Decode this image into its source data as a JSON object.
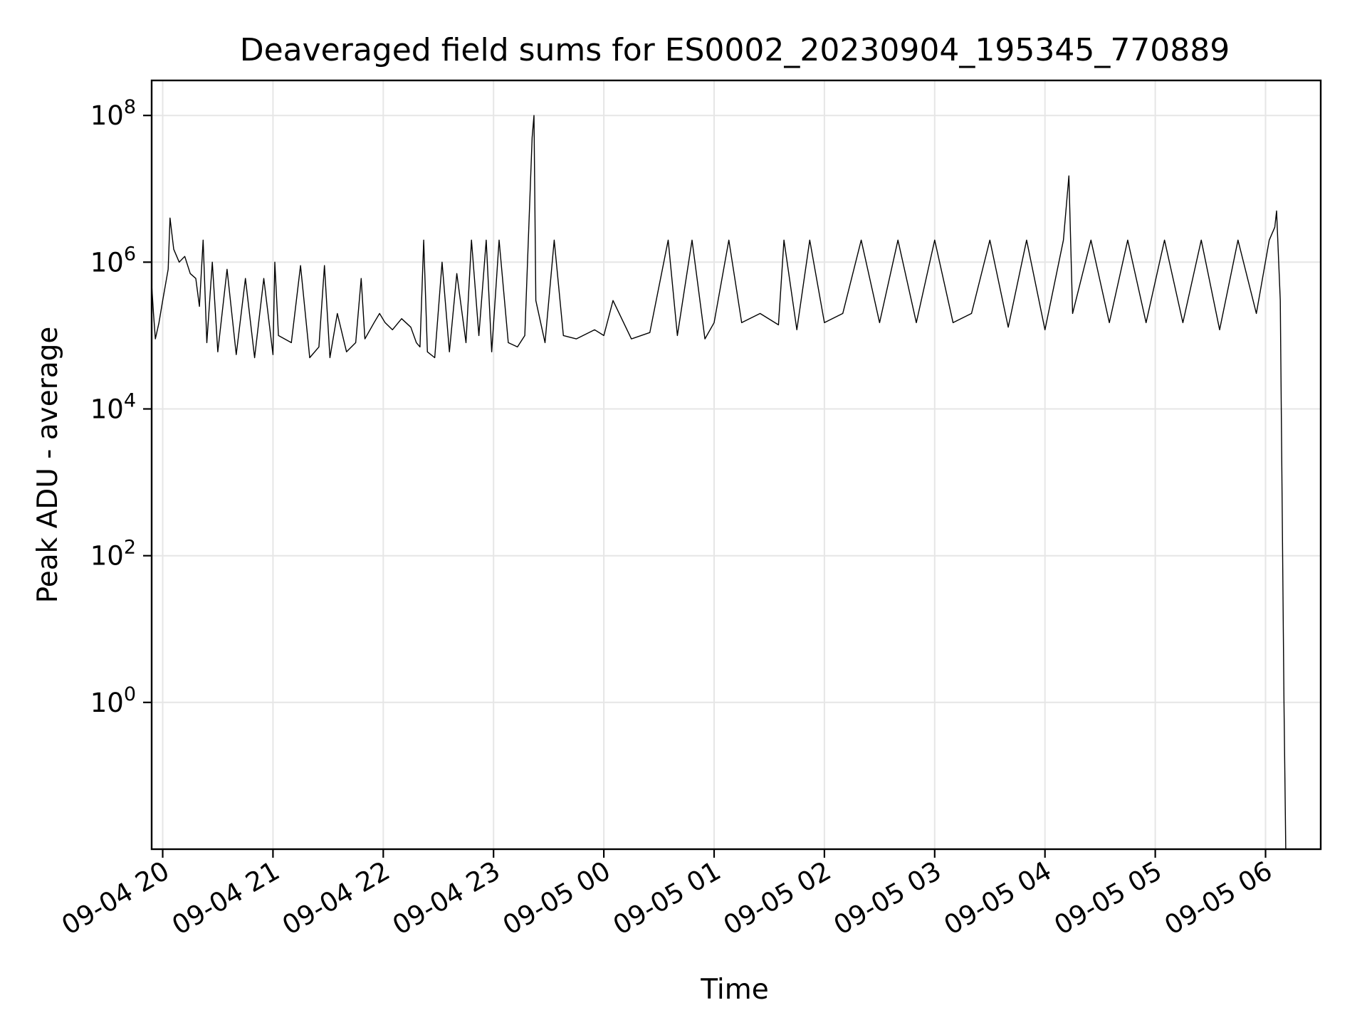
{
  "chart_data": {
    "type": "line",
    "title": "Deaveraged field sums for ES0002_20230904_195345_770889",
    "xlabel": "Time",
    "ylabel": "Peak ADU - average",
    "x_scale": "time",
    "y_scale": "log",
    "xlim": [
      "2023-09-04 19:54",
      "2023-09-05 06:30"
    ],
    "ylim": [
      0.01,
      300000000
    ],
    "grid": true,
    "line_color": "#000000",
    "x_ticks": [
      {
        "value": "2023-09-04 20:00",
        "label": "09-04 20"
      },
      {
        "value": "2023-09-04 21:00",
        "label": "09-04 21"
      },
      {
        "value": "2023-09-04 22:00",
        "label": "09-04 22"
      },
      {
        "value": "2023-09-04 23:00",
        "label": "09-04 23"
      },
      {
        "value": "2023-09-05 00:00",
        "label": "09-05 00"
      },
      {
        "value": "2023-09-05 01:00",
        "label": "09-05 01"
      },
      {
        "value": "2023-09-05 02:00",
        "label": "09-05 02"
      },
      {
        "value": "2023-09-05 03:00",
        "label": "09-05 03"
      },
      {
        "value": "2023-09-05 04:00",
        "label": "09-05 04"
      },
      {
        "value": "2023-09-05 05:00",
        "label": "09-05 05"
      },
      {
        "value": "2023-09-05 06:00",
        "label": "09-05 06"
      }
    ],
    "y_ticks": [
      {
        "value": 1,
        "base": "10",
        "exp": "0"
      },
      {
        "value": 100,
        "base": "10",
        "exp": "2"
      },
      {
        "value": 10000,
        "base": "10",
        "exp": "4"
      },
      {
        "value": 1000000,
        "base": "10",
        "exp": "6"
      },
      {
        "value": 100000000,
        "base": "10",
        "exp": "8"
      }
    ],
    "series": [
      {
        "color": "#000000",
        "points": [
          [
            "2023-09-04 19:54",
            500000
          ],
          [
            "2023-09-04 19:55",
            200000
          ],
          [
            "2023-09-04 19:56",
            90000
          ],
          [
            "2023-09-04 19:58",
            150000
          ],
          [
            "2023-09-04 20:00",
            300000
          ],
          [
            "2023-09-04 20:03",
            800000
          ],
          [
            "2023-09-04 20:04",
            4000000
          ],
          [
            "2023-09-04 20:06",
            1500000
          ],
          [
            "2023-09-04 20:09",
            1000000
          ],
          [
            "2023-09-04 20:12",
            1200000
          ],
          [
            "2023-09-04 20:15",
            700000
          ],
          [
            "2023-09-04 20:18",
            600000
          ],
          [
            "2023-09-04 20:20",
            250000
          ],
          [
            "2023-09-04 20:22",
            2000000
          ],
          [
            "2023-09-04 20:24",
            80000
          ],
          [
            "2023-09-04 20:27",
            1000000
          ],
          [
            "2023-09-04 20:30",
            60000
          ],
          [
            "2023-09-04 20:35",
            800000
          ],
          [
            "2023-09-04 20:40",
            55000
          ],
          [
            "2023-09-04 20:45",
            600000
          ],
          [
            "2023-09-04 20:50",
            50000
          ],
          [
            "2023-09-04 20:55",
            600000
          ],
          [
            "2023-09-04 21:00",
            55000
          ],
          [
            "2023-09-04 21:01",
            1000000
          ],
          [
            "2023-09-04 21:03",
            100000
          ],
          [
            "2023-09-04 21:10",
            80000
          ],
          [
            "2023-09-04 21:15",
            900000
          ],
          [
            "2023-09-04 21:20",
            50000
          ],
          [
            "2023-09-04 21:25",
            70000
          ],
          [
            "2023-09-04 21:28",
            900000
          ],
          [
            "2023-09-04 21:31",
            50000
          ],
          [
            "2023-09-04 21:35",
            200000
          ],
          [
            "2023-09-04 21:40",
            60000
          ],
          [
            "2023-09-04 21:45",
            80000
          ],
          [
            "2023-09-04 21:48",
            600000
          ],
          [
            "2023-09-04 21:50",
            90000
          ],
          [
            "2023-09-04 21:55",
            150000
          ],
          [
            "2023-09-04 21:58",
            200000
          ],
          [
            "2023-09-04 22:01",
            150000
          ],
          [
            "2023-09-04 22:05",
            120000
          ],
          [
            "2023-09-04 22:10",
            170000
          ],
          [
            "2023-09-04 22:15",
            130000
          ],
          [
            "2023-09-04 22:18",
            80000
          ],
          [
            "2023-09-04 22:20",
            70000
          ],
          [
            "2023-09-04 22:22",
            2000000
          ],
          [
            "2023-09-04 22:24",
            60000
          ],
          [
            "2023-09-04 22:28",
            50000
          ],
          [
            "2023-09-04 22:32",
            1000000
          ],
          [
            "2023-09-04 22:36",
            60000
          ],
          [
            "2023-09-04 22:40",
            700000
          ],
          [
            "2023-09-04 22:45",
            80000
          ],
          [
            "2023-09-04 22:48",
            2000000
          ],
          [
            "2023-09-04 22:52",
            100000
          ],
          [
            "2023-09-04 22:56",
            2000000
          ],
          [
            "2023-09-04 22:59",
            60000
          ],
          [
            "2023-09-04 23:03",
            2000000
          ],
          [
            "2023-09-04 23:08",
            80000
          ],
          [
            "2023-09-04 23:13",
            70000
          ],
          [
            "2023-09-04 23:17",
            100000
          ],
          [
            "2023-09-04 23:21",
            50000000
          ],
          [
            "2023-09-04 23:22",
            100000000
          ],
          [
            "2023-09-04 23:23",
            300000
          ],
          [
            "2023-09-04 23:28",
            80000
          ],
          [
            "2023-09-04 23:33",
            2000000
          ],
          [
            "2023-09-04 23:38",
            100000
          ],
          [
            "2023-09-04 23:45",
            90000
          ],
          [
            "2023-09-04 23:55",
            120000
          ],
          [
            "2023-09-05 00:00",
            100000
          ],
          [
            "2023-09-05 00:05",
            300000
          ],
          [
            "2023-09-05 00:15",
            90000
          ],
          [
            "2023-09-05 00:25",
            110000
          ],
          [
            "2023-09-05 00:35",
            2000000
          ],
          [
            "2023-09-05 00:40",
            100000
          ],
          [
            "2023-09-05 00:48",
            2000000
          ],
          [
            "2023-09-05 00:55",
            90000
          ],
          [
            "2023-09-05 01:00",
            150000
          ],
          [
            "2023-09-05 01:08",
            2000000
          ],
          [
            "2023-09-05 01:15",
            150000
          ],
          [
            "2023-09-05 01:25",
            200000
          ],
          [
            "2023-09-05 01:35",
            140000
          ],
          [
            "2023-09-05 01:38",
            2000000
          ],
          [
            "2023-09-05 01:45",
            120000
          ],
          [
            "2023-09-05 01:52",
            2000000
          ],
          [
            "2023-09-05 02:00",
            150000
          ],
          [
            "2023-09-05 02:10",
            200000
          ],
          [
            "2023-09-05 02:20",
            2000000
          ],
          [
            "2023-09-05 02:30",
            150000
          ],
          [
            "2023-09-05 02:40",
            2000000
          ],
          [
            "2023-09-05 02:50",
            150000
          ],
          [
            "2023-09-05 03:00",
            2000000
          ],
          [
            "2023-09-05 03:10",
            150000
          ],
          [
            "2023-09-05 03:20",
            200000
          ],
          [
            "2023-09-05 03:30",
            2000000
          ],
          [
            "2023-09-05 03:40",
            130000
          ],
          [
            "2023-09-05 03:50",
            2000000
          ],
          [
            "2023-09-05 04:00",
            120000
          ],
          [
            "2023-09-05 04:10",
            2000000
          ],
          [
            "2023-09-05 04:13",
            15000000
          ],
          [
            "2023-09-05 04:15",
            200000
          ],
          [
            "2023-09-05 04:25",
            2000000
          ],
          [
            "2023-09-05 04:35",
            150000
          ],
          [
            "2023-09-05 04:45",
            2000000
          ],
          [
            "2023-09-05 04:55",
            150000
          ],
          [
            "2023-09-05 05:05",
            2000000
          ],
          [
            "2023-09-05 05:15",
            150000
          ],
          [
            "2023-09-05 05:25",
            2000000
          ],
          [
            "2023-09-05 05:35",
            120000
          ],
          [
            "2023-09-05 05:45",
            2000000
          ],
          [
            "2023-09-05 05:55",
            200000
          ],
          [
            "2023-09-05 06:02",
            2000000
          ],
          [
            "2023-09-05 06:05",
            3000000
          ],
          [
            "2023-09-05 06:06",
            5000000
          ],
          [
            "2023-09-05 06:08",
            300000
          ],
          [
            "2023-09-05 06:10",
            1
          ],
          [
            "2023-09-05 06:11",
            0.01
          ]
        ]
      }
    ]
  }
}
